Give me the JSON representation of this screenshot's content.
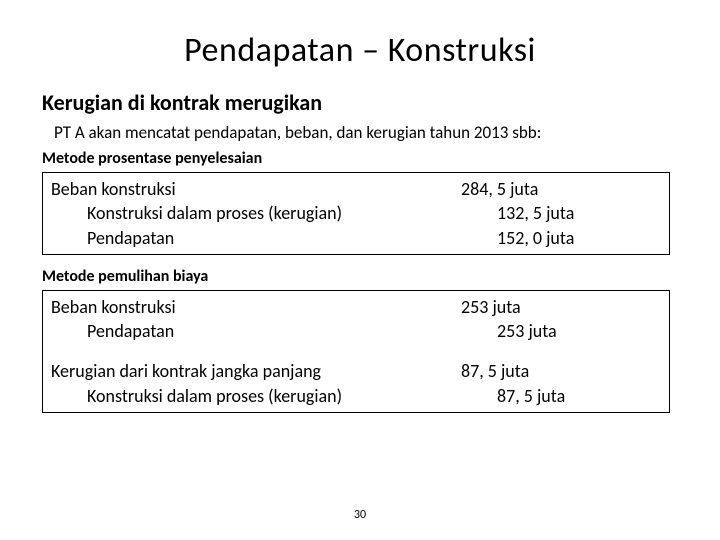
{
  "title": "Pendapatan – Konstruksi",
  "subtitle": "Kerugian di kontrak merugikan",
  "desc": "PT A akan mencatat pendapatan, beban, dan kerugian tahun 2013 sbb:",
  "method1": {
    "label": "Metode prosentase penyelesaian",
    "rows": [
      {
        "label": "Beban konstruksi",
        "indent": 0,
        "value": "284, 5 juta",
        "vindent": 0
      },
      {
        "label": "Konstruksi dalam proses (kerugian)",
        "indent": 1,
        "value": "132, 5 juta",
        "vindent": 1
      },
      {
        "label": "Pendapatan",
        "indent": 1,
        "value": "152, 0 juta",
        "vindent": 1
      }
    ]
  },
  "method2": {
    "label": "Metode pemulihan biaya",
    "rows": [
      {
        "label": "Beban konstruksi",
        "indent": 0,
        "value": "253 juta",
        "vindent": 0
      },
      {
        "label": "Pendapatan",
        "indent": 1,
        "value": "253 juta",
        "vindent": 1
      },
      {
        "label": "",
        "indent": 0,
        "value": "",
        "vindent": 0,
        "spacer": true
      },
      {
        "label": "Kerugian dari kontrak jangka panjang",
        "indent": 0,
        "value": "87, 5 juta",
        "vindent": 0
      },
      {
        "label": "Konstruksi dalam proses (kerugian)",
        "indent": 1,
        "value": "87, 5 juta",
        "vindent": 1
      }
    ]
  },
  "page_number": "30",
  "colors": {
    "text": "#000000",
    "background": "#ffffff",
    "border": "#000000"
  }
}
